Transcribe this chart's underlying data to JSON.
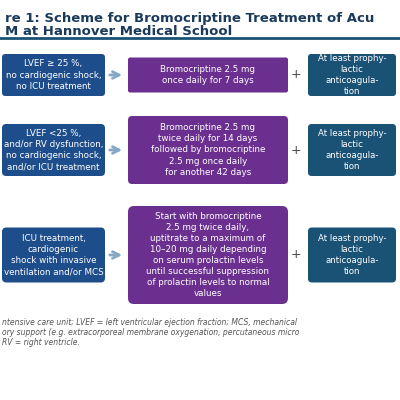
{
  "title_line1": "re 1: Scheme for Bromocriptine Treatment of Acu",
  "title_line2": "M at Hannover Medical School",
  "bg_color": "#ffffff",
  "title_color": "#1a3a5c",
  "title_fontsize": 9.5,
  "blue_box_color": "#1e4d8c",
  "purple_box_color": "#6b2f8f",
  "teal_box_color": "#1a5276",
  "arrow_color": "#85a9c5",
  "plus_color": "#555555",
  "separator_color": "#1a5276",
  "footnote_color": "#555555",
  "rows": [
    {
      "left_text": "LVEF ≥ 25 %,\nno cardiogenic shock,\nno ICU treatment",
      "middle_text": "Bromocriptine 2.5 mg\nonce daily for 7 days",
      "right_text": "At least prophy-\nlactic\nanticoagula-\ntion"
    },
    {
      "left_text": "LVEF <25 %,\nand/or RV dysfunction,\nno cardiogenic shock,\nand/or ICU treatment",
      "middle_text": "Bromocriptine 2.5 mg\ntwice daily for 14 days\nfollowed by bromocriptine\n2.5 mg once daily\nfor another 42 days",
      "right_text": "At least prophy-\nlactic\nanticoagula-\ntion"
    },
    {
      "left_text": "ICU treatment,\ncardiogenic\nshock with invasive\nventilation and/or MCS",
      "middle_text": "Start with bromocriptine\n2.5 mg twice daily,\nuptitrate to a maximum of\n10–20 mg daily depending\non serum prolactin levels\nuntil successful suppression\nof prolactin levels to normal\nvalues",
      "right_text": "At least prophy-\nlactic\nanticoagula-\ntion"
    }
  ],
  "footnote_lines": [
    "ntensive care unit; LVEF = left ventricular ejection fraction; MCS, mechanical",
    "ory support (e.g. extracorporeal membrane oxygenation, percutaneous micro",
    "RV = right ventricle."
  ]
}
